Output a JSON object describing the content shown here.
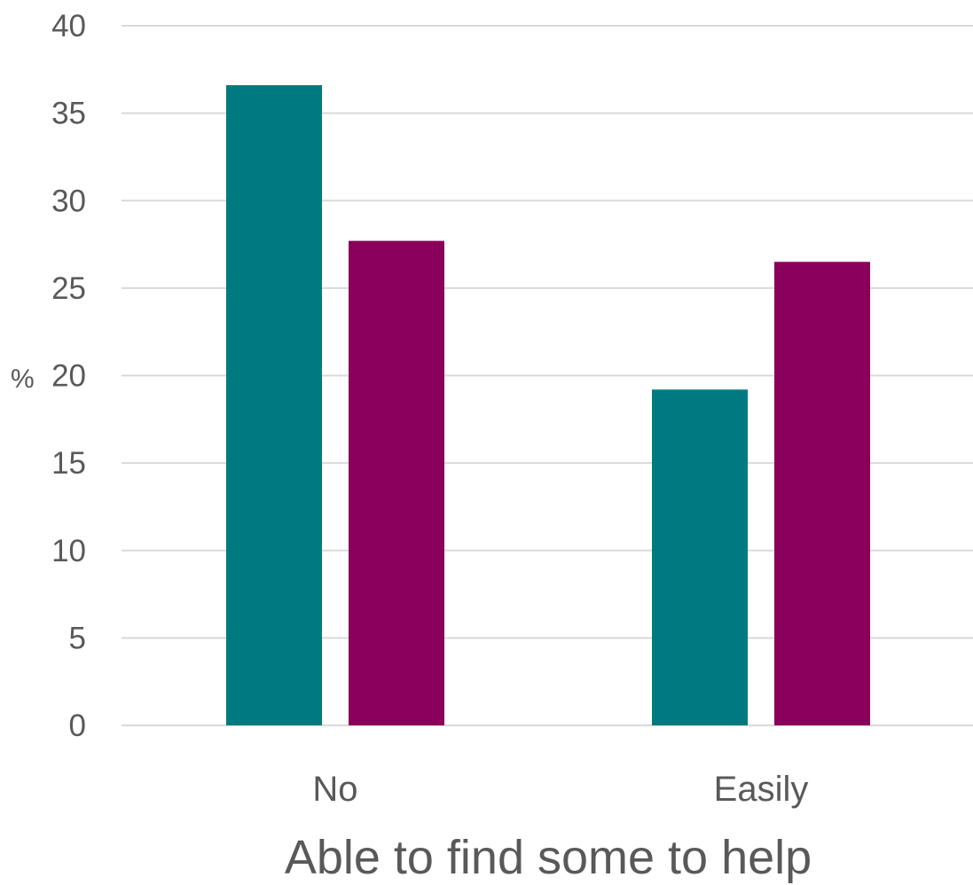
{
  "chart_data": {
    "type": "bar",
    "categories": [
      "No",
      "Easily"
    ],
    "series": [
      {
        "color": "#007A80",
        "values": [
          36.6,
          19.2
        ]
      },
      {
        "color": "#8B005A",
        "values": [
          27.7,
          26.5
        ]
      }
    ],
    "xlabel": "Able to find some to help",
    "ylabel": "%",
    "ylim": [
      0,
      40
    ],
    "yticks": [
      0,
      5,
      10,
      15,
      20,
      25,
      30,
      35,
      40
    ],
    "grid": true,
    "legend": "none"
  }
}
